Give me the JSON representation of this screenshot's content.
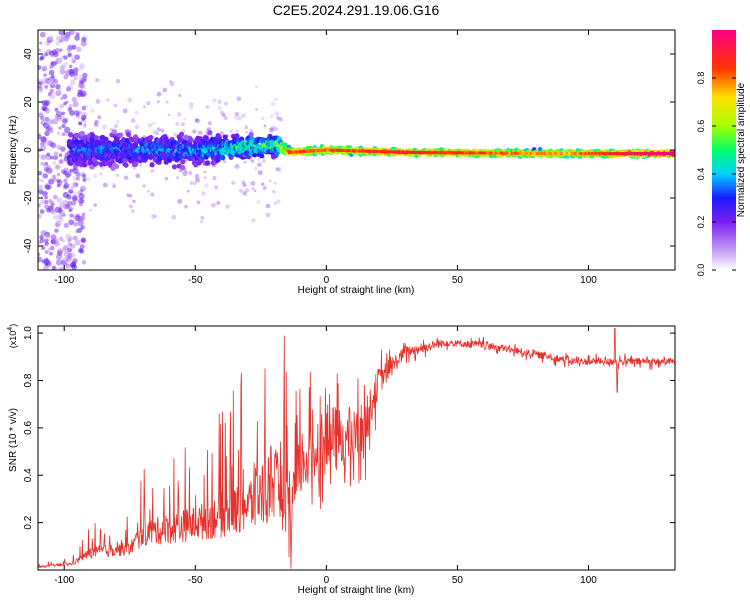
{
  "title": "C2E5.2024.291.19.06.G16",
  "chart_data": [
    {
      "type": "heatmap",
      "xlabel": "Height of straight line (km)",
      "ylabel": "Frequency (Hz)",
      "xlim": [
        -110,
        133
      ],
      "ylim": [
        -50,
        50
      ],
      "xticks": [
        -100,
        -50,
        0,
        50,
        100
      ],
      "yticks": [
        -40,
        -20,
        0,
        20,
        40
      ],
      "colorbar": {
        "label": "Normalized spectral amplitude",
        "range": [
          0,
          1
        ],
        "ticks": [
          0.0,
          0.2,
          0.4,
          0.6,
          0.8
        ]
      },
      "ridge": {
        "note_points": [
          {
            "x": -95,
            "freq": 0,
            "spread": 10,
            "amp": 0.3
          },
          {
            "x": -50,
            "freq": 0,
            "spread": 8,
            "amp": 0.35
          },
          {
            "x": -18,
            "freq": 2,
            "spread": 5,
            "amp": 0.55
          },
          {
            "x": -14,
            "freq": -1,
            "spread": 2,
            "amp": 0.8
          },
          {
            "x": 0,
            "freq": 0,
            "spread": 2,
            "amp": 0.75
          },
          {
            "x": 30,
            "freq": -1,
            "spread": 1.5,
            "amp": 0.85
          },
          {
            "x": 90,
            "freq": -1.5,
            "spread": 2,
            "amp": 0.7
          },
          {
            "x": 130,
            "freq": -1.5,
            "spread": 1.5,
            "amp": 0.95
          }
        ]
      }
    },
    {
      "type": "line",
      "xlabel": "Height of straight line (km)",
      "ylabel": "SNR (10 * v/v)",
      "y_scale_label": "(x10",
      "y_scale_exp": "4",
      "y_scale_close": ")",
      "xlim": [
        -110,
        133
      ],
      "ylim": [
        0,
        1.03
      ],
      "xticks": [
        -100,
        -50,
        0,
        50,
        100
      ],
      "yticks": [
        0.2,
        0.4,
        0.6,
        0.8,
        1.0
      ],
      "series": [
        {
          "color": "#e8302a",
          "envelope": [
            {
              "x": -110,
              "y": 0.01,
              "noise": 0.01
            },
            {
              "x": -97,
              "y": 0.02,
              "noise": 0.02
            },
            {
              "x": -90,
              "y": 0.05,
              "noise": 0.08
            },
            {
              "x": -75,
              "y": 0.06,
              "noise": 0.1
            },
            {
              "x": -70,
              "y": 0.1,
              "noise": 0.18
            },
            {
              "x": -50,
              "y": 0.12,
              "noise": 0.25
            },
            {
              "x": -30,
              "y": 0.15,
              "noise": 0.4
            },
            {
              "x": -20,
              "y": 0.2,
              "noise": 0.55
            },
            {
              "x": -15,
              "y": 0.15,
              "noise": 0.45
            },
            {
              "x": -10,
              "y": 0.45,
              "noise": 0.3
            },
            {
              "x": 0,
              "y": 0.55,
              "noise": 0.3
            },
            {
              "x": 10,
              "y": 0.55,
              "noise": 0.25
            },
            {
              "x": 15,
              "y": 0.62,
              "noise": 0.2
            },
            {
              "x": 20,
              "y": 0.8,
              "noise": 0.12
            },
            {
              "x": 30,
              "y": 0.92,
              "noise": 0.05
            },
            {
              "x": 45,
              "y": 0.96,
              "noise": 0.03
            },
            {
              "x": 60,
              "y": 0.95,
              "noise": 0.03
            },
            {
              "x": 80,
              "y": 0.91,
              "noise": 0.03
            },
            {
              "x": 95,
              "y": 0.88,
              "noise": 0.03
            },
            {
              "x": 105,
              "y": 0.88,
              "noise": 0.03
            },
            {
              "x": 133,
              "y": 0.88,
              "noise": 0.03
            }
          ],
          "spikes": [
            {
              "x": 110,
              "y": 1.02
            },
            {
              "x": 111,
              "y": 0.75
            }
          ]
        }
      ]
    }
  ]
}
